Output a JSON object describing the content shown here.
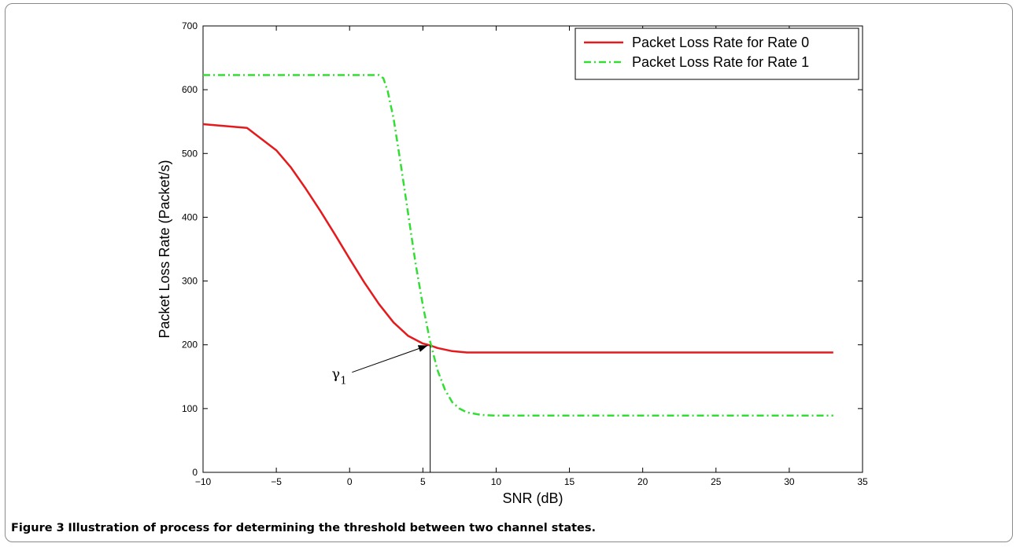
{
  "caption": {
    "label": "Figure 3",
    "text": "Illustration of process for determining the threshold between two channel states."
  },
  "chart_data": {
    "type": "line",
    "title": "",
    "xlabel": "SNR (dB)",
    "ylabel": "Packet Loss Rate (Packet/s)",
    "xlim": [
      -10,
      35
    ],
    "ylim": [
      0,
      700
    ],
    "xticks": [
      -10,
      -5,
      0,
      5,
      10,
      15,
      20,
      25,
      30,
      35
    ],
    "yticks": [
      0,
      100,
      200,
      300,
      400,
      500,
      600,
      700
    ],
    "xtick_labels": [
      "−10",
      "−5",
      "0",
      "5",
      "10",
      "15",
      "20",
      "25",
      "30",
      "35"
    ],
    "ytick_labels": [
      "0",
      "100",
      "200",
      "300",
      "400",
      "500",
      "600",
      "700"
    ],
    "grid": false,
    "legend_position": "top-right",
    "series": [
      {
        "name": "Packet Loss Rate for Rate 0",
        "color": "#e41a1c",
        "style": "solid",
        "x": [
          -10,
          -7,
          -5,
          -4,
          -3,
          -2,
          -1,
          0,
          1,
          2,
          3,
          4,
          5,
          5.5,
          6,
          7,
          8,
          10,
          15,
          20,
          25,
          30,
          33
        ],
        "y": [
          546,
          540,
          505,
          478,
          445,
          410,
          373,
          335,
          298,
          264,
          235,
          214,
          202,
          199,
          195,
          190,
          188,
          188,
          188,
          188,
          188,
          188,
          188
        ]
      },
      {
        "name": "Packet Loss Rate for Rate 1",
        "color": "#33dd33",
        "style": "dashdot",
        "x": [
          -10,
          -5,
          0,
          1,
          2,
          2.3,
          2.6,
          3,
          3.5,
          4,
          4.5,
          5,
          5.5,
          6,
          6.5,
          7,
          7.5,
          8,
          9,
          10,
          15,
          20,
          25,
          30,
          33
        ],
        "y": [
          623,
          623,
          623,
          623,
          623,
          618,
          598,
          555,
          482,
          405,
          328,
          262,
          205,
          160,
          130,
          110,
          100,
          94,
          90,
          89,
          89,
          89,
          89,
          89,
          89
        ]
      }
    ],
    "annotations": [
      {
        "text": "γ",
        "subscript": "1",
        "x": -0.8,
        "y": 152,
        "arrow_to": [
          5.5,
          199
        ],
        "vline_x": 5.5
      }
    ]
  }
}
